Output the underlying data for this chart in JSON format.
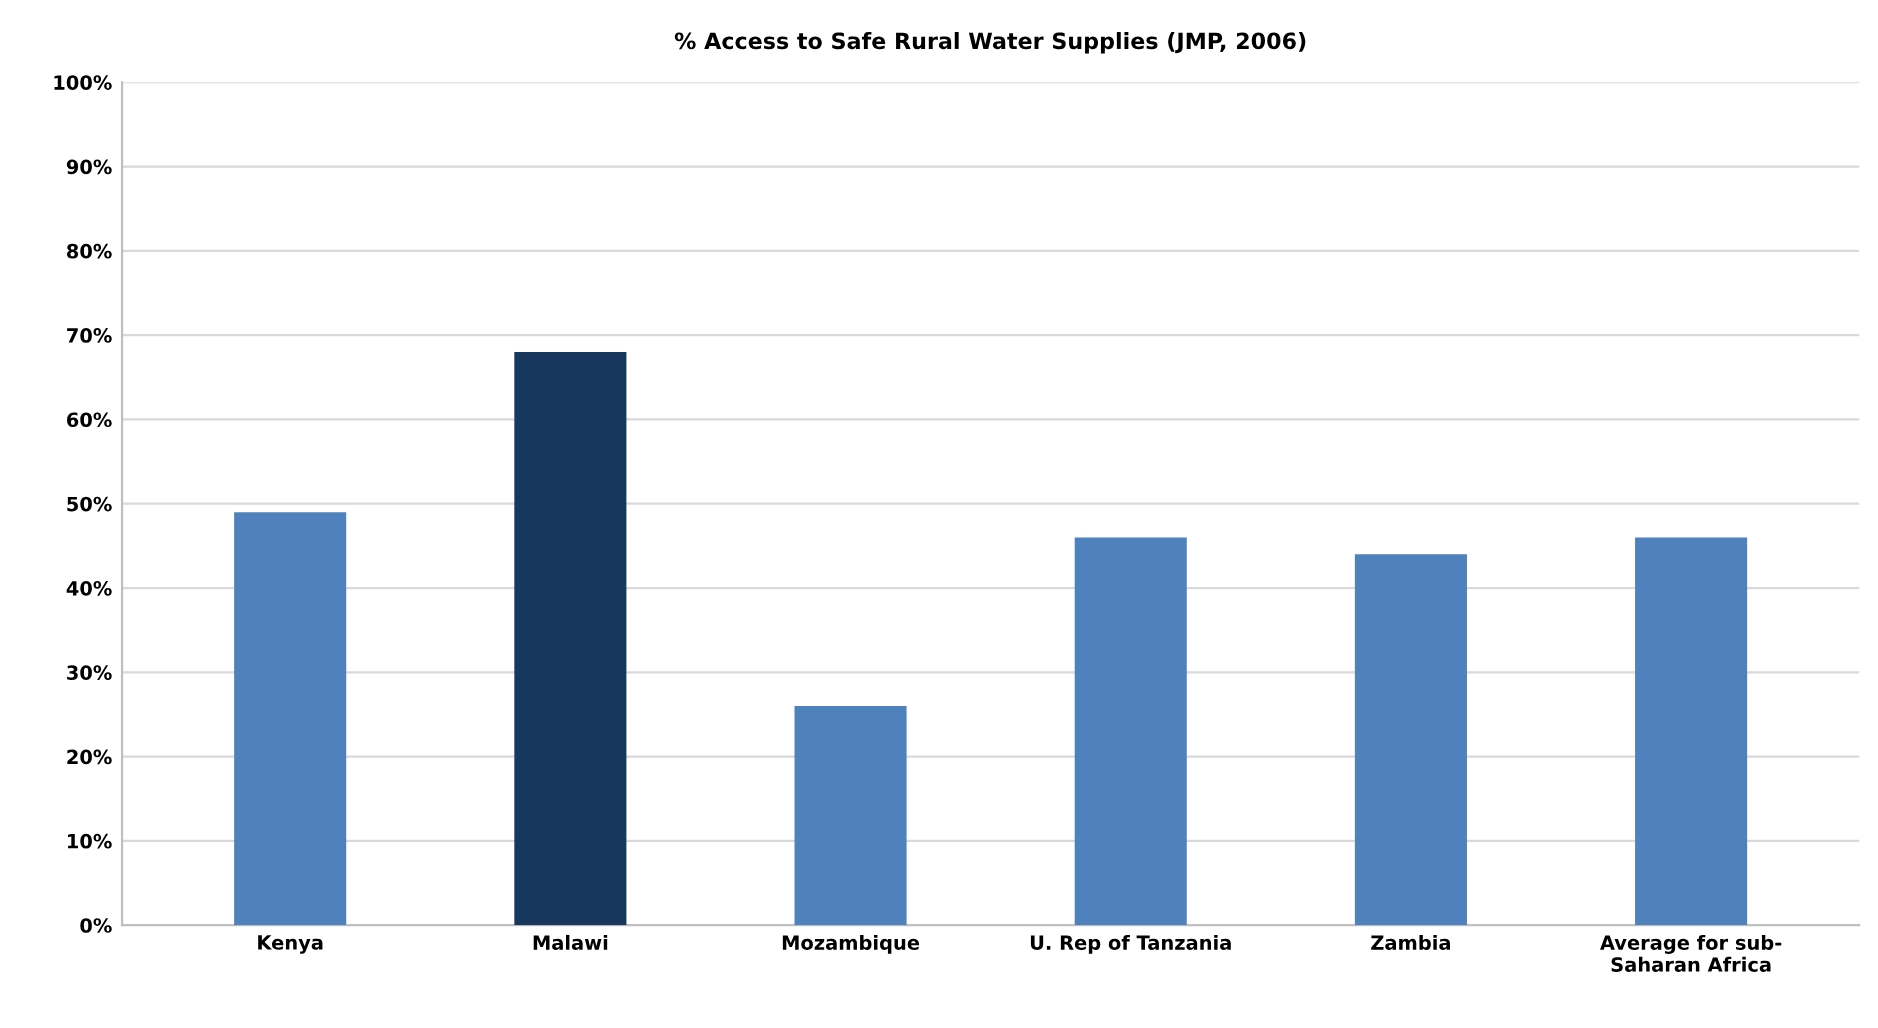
{
  "chart_data": {
    "type": "bar",
    "title": "% Access to Safe Rural Water Supplies (JMP, 2006)",
    "categories": [
      "Kenya",
      "Malawi",
      "Mozambique",
      "U. Rep of Tanzania",
      "Zambia",
      "Average for sub-\nSaharan Africa"
    ],
    "values": [
      49,
      68,
      26,
      46,
      44,
      46
    ],
    "colors": [
      "#4f81bd",
      "#17375e",
      "#4f81bd",
      "#4f81bd",
      "#4f81bd",
      "#4f81bd"
    ],
    "ylim": [
      0,
      100
    ],
    "yticks": [
      {
        "value": 0,
        "label": "0%"
      },
      {
        "value": 10,
        "label": "10%"
      },
      {
        "value": 20,
        "label": "20%"
      },
      {
        "value": 30,
        "label": "30%"
      },
      {
        "value": 40,
        "label": "40%"
      },
      {
        "value": 50,
        "label": "50%"
      },
      {
        "value": 60,
        "label": "60%"
      },
      {
        "value": 70,
        "label": "70%"
      },
      {
        "value": 80,
        "label": "80%"
      },
      {
        "value": 90,
        "label": "90%"
      },
      {
        "value": 100,
        "label": "100%"
      }
    ],
    "grid": "y",
    "legend": false
  }
}
